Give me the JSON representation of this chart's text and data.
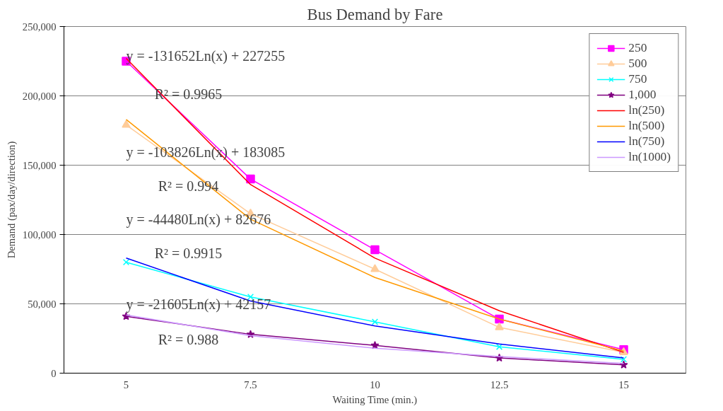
{
  "chart_data": {
    "type": "line",
    "title": "Bus Demand by Fare",
    "xlabel": "Waiting Time (min.)",
    "ylabel": "Demand (pax/day/direction)",
    "categories": [
      "5",
      "7.5",
      "10",
      "12.5",
      "15"
    ],
    "ylim": [
      0,
      250000
    ],
    "yticks": [
      {
        "value": 0,
        "label": "0"
      },
      {
        "value": 50000,
        "label": "50,000"
      },
      {
        "value": 100000,
        "label": "100,000"
      },
      {
        "value": 150000,
        "label": "150,000"
      },
      {
        "value": 200000,
        "label": "200,000"
      },
      {
        "value": 250000,
        "label": "250,000"
      }
    ],
    "grid": "y",
    "legend": "top right",
    "series": [
      {
        "name": "250",
        "color": "#ff00ff",
        "marker": "square",
        "values": [
          225000,
          140000,
          89000,
          39000,
          17000
        ]
      },
      {
        "name": "500",
        "color": "#ffcc99",
        "marker": "triangle",
        "values": [
          179000,
          115000,
          75000,
          33000,
          15000
        ]
      },
      {
        "name": "750",
        "color": "#00ffff",
        "marker": "cross",
        "values": [
          80000,
          55000,
          37000,
          19000,
          10000
        ]
      },
      {
        "name": "1,000",
        "color": "#800080",
        "marker": "star",
        "values": [
          41000,
          28000,
          20000,
          11000,
          6000
        ]
      },
      {
        "name": "ln(250)",
        "color": "#ff0000",
        "marker": "none",
        "values": [
          227000,
          136000,
          83000,
          45000,
          15000
        ]
      },
      {
        "name": "ln(500)",
        "color": "#ff9900",
        "marker": "none",
        "values": [
          183000,
          111000,
          69000,
          39000,
          16000
        ]
      },
      {
        "name": "ln(750)",
        "color": "#0000ff",
        "marker": "none",
        "values": [
          83000,
          52000,
          34000,
          21000,
          11000
        ]
      },
      {
        "name": "ln(1000)",
        "color": "#cc99ff",
        "marker": "none",
        "values": [
          42000,
          27000,
          18000,
          12000,
          7000
        ]
      }
    ],
    "annotations": [
      "y = -131652Ln(x) + 227255",
      "R² = 0.9965",
      "y = -103826Ln(x) + 183085",
      "R² = 0.994",
      "y = -44480Ln(x) + 82676",
      "R² = 0.9915",
      "y = -21605Ln(x) + 42157",
      "R² = 0.988"
    ]
  }
}
